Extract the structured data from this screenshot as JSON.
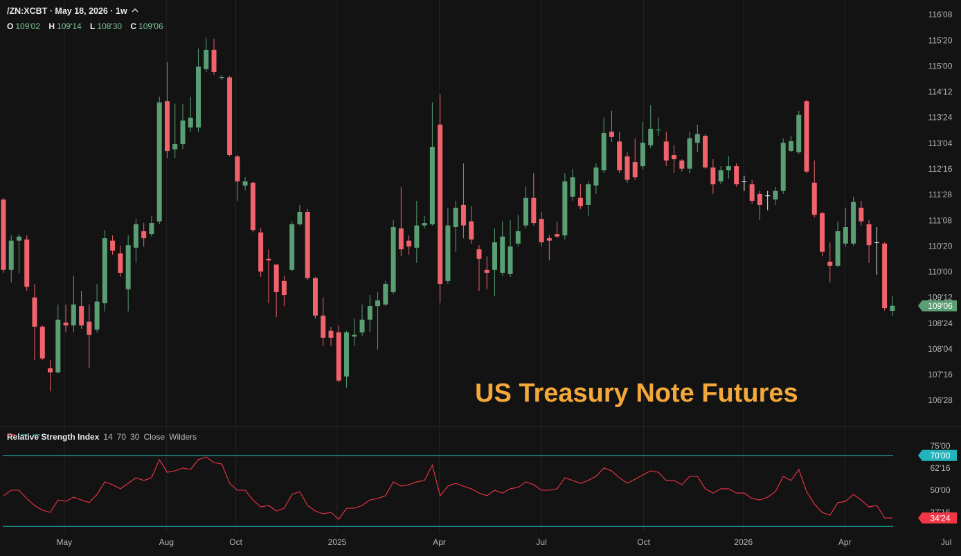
{
  "chart_data": [
    {
      "type": "candlestick",
      "title": "/ZN:XCBT · May 18, 2026 · 1w",
      "legend": [
        {
          "key": "O",
          "label": "109'02"
        },
        {
          "key": "H",
          "label": "109'14"
        },
        {
          "key": "L",
          "label": "108'30"
        },
        {
          "key": "C",
          "label": "109'06"
        }
      ],
      "annotation": "US Treasury Note Futures",
      "last_label": "109'06",
      "colors": {
        "up": "#5a9e74",
        "down": "#f0626c",
        "flat": "#e8e8e8",
        "annotation": "#f4a83a",
        "grid": "#232323"
      },
      "open": [
        111.77,
        110.06,
        110.77,
        110.8,
        109.39,
        108.68,
        107.67,
        107.57,
        108.78,
        108.71,
        109.18,
        108.8,
        108.61,
        109.25,
        110.77,
        110.46,
        109.59,
        110.6,
        111.0,
        110.93,
        111.24,
        114.16,
        112.99,
        113.12,
        113.52,
        113.52,
        114.94,
        115.41,
        114.72,
        114.74,
        112.82,
        112.11,
        112.18,
        110.97,
        110.33,
        110.19,
        109.79,
        110.06,
        111.17,
        111.47,
        109.86,
        108.95,
        108.58,
        108.54,
        107.47,
        108.44,
        108.54,
        108.85,
        109.18,
        109.22,
        109.52,
        111.07,
        110.77,
        110.6,
        111.14,
        111.17,
        113.59,
        109.79,
        111.1,
        111.64,
        111.24,
        110.56,
        110.06,
        110.06,
        109.99,
        109.96,
        110.7,
        111.14,
        111.81,
        111.3,
        110.83,
        110.93,
        110.9,
        111.84,
        111.81,
        111.64,
        112.11,
        112.48,
        113.42,
        113.18,
        112.82,
        112.68,
        112.58,
        113.09,
        113.46,
        113.18,
        112.85,
        112.72,
        112.52,
        113.15,
        113.32,
        112.55,
        112.21,
        112.48,
        112.58,
        112.21,
        112.14,
        111.91,
        111.87,
        111.77,
        111.98,
        112.95,
        112.92,
        114.16,
        112.18,
        111.44,
        110.26,
        110.16,
        110.7,
        110.7,
        111.57,
        111.17,
        110.73,
        110.7,
        109.0625
      ],
      "high": [
        111.81,
        110.9,
        110.93,
        110.9,
        109.72,
        108.71,
        107.87,
        109.22,
        109.22,
        109.92,
        109.55,
        109.22,
        109.72,
        111.03,
        110.9,
        110.65,
        110.9,
        111.31,
        111.2,
        111.37,
        114.27,
        115.11,
        114.1,
        114.1,
        114.27,
        115.44,
        115.71,
        115.68,
        114.8,
        114.77,
        112.85,
        112.31,
        112.21,
        111.07,
        110.56,
        110.19,
        109.92,
        111.24,
        111.64,
        111.54,
        109.89,
        109.39,
        108.68,
        108.71,
        108.58,
        108.88,
        109.22,
        109.45,
        109.52,
        109.79,
        111.27,
        112.08,
        110.9,
        111.74,
        111.37,
        114.13,
        114.33,
        111.57,
        111.74,
        112.65,
        111.61,
        110.66,
        110.39,
        111.07,
        111.24,
        111.27,
        111.4,
        112.08,
        112.41,
        111.47,
        110.9,
        111.24,
        112.41,
        112.51,
        112.14,
        112.21,
        112.65,
        113.76,
        113.93,
        113.42,
        112.92,
        113.26,
        113.66,
        114.06,
        113.76,
        113.42,
        113.09,
        112.75,
        113.42,
        113.59,
        113.36,
        112.75,
        112.58,
        112.82,
        112.65,
        112.35,
        112.25,
        111.98,
        111.98,
        112.08,
        113.26,
        113.32,
        113.93,
        114.2,
        112.72,
        111.47,
        110.73,
        111.24,
        111.57,
        111.84,
        111.74,
        111.27,
        111.1,
        110.73,
        109.4375
      ],
      "low": [
        109.98,
        109.76,
        109.98,
        109.55,
        107.87,
        107.87,
        107.11,
        107.54,
        108.54,
        108.54,
        108.63,
        107.67,
        108.54,
        109.05,
        110.43,
        109.89,
        109.05,
        110.23,
        110.63,
        110.87,
        111.17,
        112.78,
        112.78,
        113.0,
        113.42,
        113.42,
        114.87,
        114.8,
        114.67,
        112.82,
        111.74,
        111.99,
        110.97,
        109.89,
        109.25,
        108.91,
        109.18,
        110.02,
        111.14,
        109.81,
        108.88,
        108.21,
        108.21,
        107.33,
        107.2,
        108.21,
        108.46,
        108.54,
        108.12,
        109.18,
        109.47,
        110.39,
        110.43,
        110.23,
        111.07,
        111.14,
        109.25,
        109.72,
        110.5,
        110.83,
        110.7,
        109.55,
        109.59,
        109.42,
        109.92,
        109.89,
        110.63,
        111.07,
        111.14,
        110.63,
        110.29,
        110.83,
        110.8,
        111.74,
        111.54,
        111.37,
        111.91,
        112.41,
        113.17,
        112.41,
        112.18,
        112.25,
        112.51,
        113.02,
        113.32,
        112.58,
        112.41,
        112.45,
        112.41,
        112.92,
        112.52,
        111.91,
        112.14,
        112.28,
        112.08,
        111.98,
        111.67,
        111.27,
        111.51,
        111.64,
        111.91,
        112.92,
        112.88,
        112.41,
        111.34,
        110.39,
        109.76,
        110.13,
        110.63,
        110.65,
        111.14,
        110.23,
        109.94,
        109.07,
        108.9375
      ],
      "close": [
        110.06,
        110.77,
        110.87,
        109.65,
        108.68,
        107.91,
        107.57,
        108.85,
        108.71,
        109.22,
        108.71,
        108.48,
        109.29,
        110.83,
        110.53,
        109.99,
        110.66,
        111.17,
        110.83,
        111.2,
        114.13,
        112.95,
        113.12,
        113.69,
        113.76,
        115.0,
        115.41,
        114.87,
        114.75,
        112.85,
        112.21,
        112.21,
        111.03,
        110.02,
        110.29,
        109.52,
        109.45,
        111.17,
        111.47,
        109.86,
        108.95,
        108.41,
        108.41,
        107.37,
        108.54,
        108.48,
        108.85,
        109.18,
        109.32,
        109.72,
        111.1,
        110.56,
        110.63,
        111.14,
        111.2,
        113.05,
        109.72,
        111.14,
        111.57,
        111.14,
        110.8,
        110.33,
        109.99,
        110.73,
        110.87,
        110.63,
        111.0,
        111.81,
        111.2,
        110.73,
        110.77,
        110.87,
        112.21,
        112.31,
        111.61,
        112.14,
        112.55,
        113.39,
        113.29,
        112.48,
        112.25,
        112.31,
        113.15,
        113.49,
        113.47,
        112.72,
        112.75,
        112.52,
        113.26,
        113.36,
        112.55,
        112.14,
        112.48,
        112.58,
        112.14,
        112.21,
        111.74,
        111.64,
        111.87,
        111.98,
        113.15,
        113.19,
        113.83,
        112.45,
        111.4,
        110.5,
        110.16,
        111.0,
        111.1,
        111.71,
        111.24,
        110.66,
        110.73,
        109.13,
        109.1875
      ],
      "xlim": [
        -0.44,
        122.8
      ],
      "xticks": [
        {
          "value": 7.8,
          "label": "May"
        },
        {
          "value": 20.9,
          "label": "Aug"
        },
        {
          "value": 29.8,
          "label": "Oct"
        },
        {
          "value": 42.8,
          "label": "2025"
        },
        {
          "value": 55.9,
          "label": "Apr"
        },
        {
          "value": 69.0,
          "label": "Jul"
        },
        {
          "value": 82.1,
          "label": "Oct"
        },
        {
          "value": 94.9,
          "label": "2026"
        },
        {
          "value": 107.9,
          "label": "Apr"
        },
        {
          "value": 120.9,
          "label": "Jul"
        }
      ],
      "ylim": [
        106.27,
        116.62
      ],
      "yticks": [
        {
          "value": 116.25,
          "label": "116'08"
        },
        {
          "value": 115.625,
          "label": "115'20"
        },
        {
          "value": 115,
          "label": "115'00"
        },
        {
          "value": 114.375,
          "label": "114'12"
        },
        {
          "value": 113.75,
          "label": "113'24"
        },
        {
          "value": 113.125,
          "label": "113'04"
        },
        {
          "value": 112.5,
          "label": "112'16"
        },
        {
          "value": 111.875,
          "label": "111'28"
        },
        {
          "value": 111.25,
          "label": "111'08"
        },
        {
          "value": 110.625,
          "label": "110'20"
        },
        {
          "value": 110,
          "label": "110'00"
        },
        {
          "value": 109.375,
          "label": "109'12"
        },
        {
          "value": 108.75,
          "label": "108'24"
        },
        {
          "value": 108.125,
          "label": "108'04"
        },
        {
          "value": 107.5,
          "label": "107'16"
        },
        {
          "value": 106.875,
          "label": "106'28"
        }
      ],
      "grid": "x"
    },
    {
      "type": "line",
      "title": "Relative Strength Index",
      "params": [
        "14",
        "70",
        "30",
        "Close",
        "Wilders"
      ],
      "color": "#f23645",
      "level_color": "#22b3bd",
      "values": [
        47.3,
        50.4,
        50.4,
        45.7,
        41.8,
        39.1,
        37.9,
        44.9,
        44.1,
        46.5,
        44.9,
        43.4,
        48.0,
        55.1,
        53.5,
        51.2,
        54.3,
        57.4,
        55.9,
        57.4,
        67.6,
        60.5,
        61.3,
        62.9,
        62.1,
        67.6,
        69.1,
        66.0,
        65.2,
        54.3,
        50.4,
        50.4,
        44.9,
        41.0,
        41.8,
        38.7,
        40.2,
        48.0,
        49.6,
        41.8,
        38.7,
        37.1,
        37.9,
        34.0,
        40.2,
        40.2,
        41.8,
        44.9,
        45.7,
        47.3,
        55.1,
        52.7,
        53.5,
        55.1,
        55.9,
        64.5,
        47.3,
        52.7,
        54.3,
        52.7,
        51.2,
        48.8,
        47.3,
        50.4,
        48.8,
        51.2,
        52.0,
        55.1,
        53.5,
        50.4,
        50.4,
        51.2,
        57.4,
        55.9,
        54.3,
        55.9,
        58.2,
        62.9,
        61.3,
        57.4,
        54.3,
        56.6,
        59.0,
        61.3,
        60.5,
        55.9,
        55.9,
        53.5,
        58.2,
        58.2,
        51.2,
        48.8,
        51.2,
        51.2,
        48.8,
        48.8,
        45.7,
        44.9,
        46.5,
        49.6,
        58.2,
        55.9,
        62.1,
        49.6,
        42.6,
        37.9,
        36.3,
        43.4,
        44.1,
        48.0,
        44.9,
        41.0,
        41.8,
        34.8,
        34.75
      ],
      "last_label": "34'24",
      "levels": [
        70,
        30
      ],
      "level_label": "70'00",
      "ylim": [
        26.2,
        85.9
      ],
      "yticks": [
        {
          "value": 75,
          "label": "75'00"
        },
        {
          "value": 62.5,
          "label": "62'16"
        },
        {
          "value": 50,
          "label": "50'00"
        },
        {
          "value": 37.5,
          "label": "37'16"
        }
      ]
    }
  ]
}
